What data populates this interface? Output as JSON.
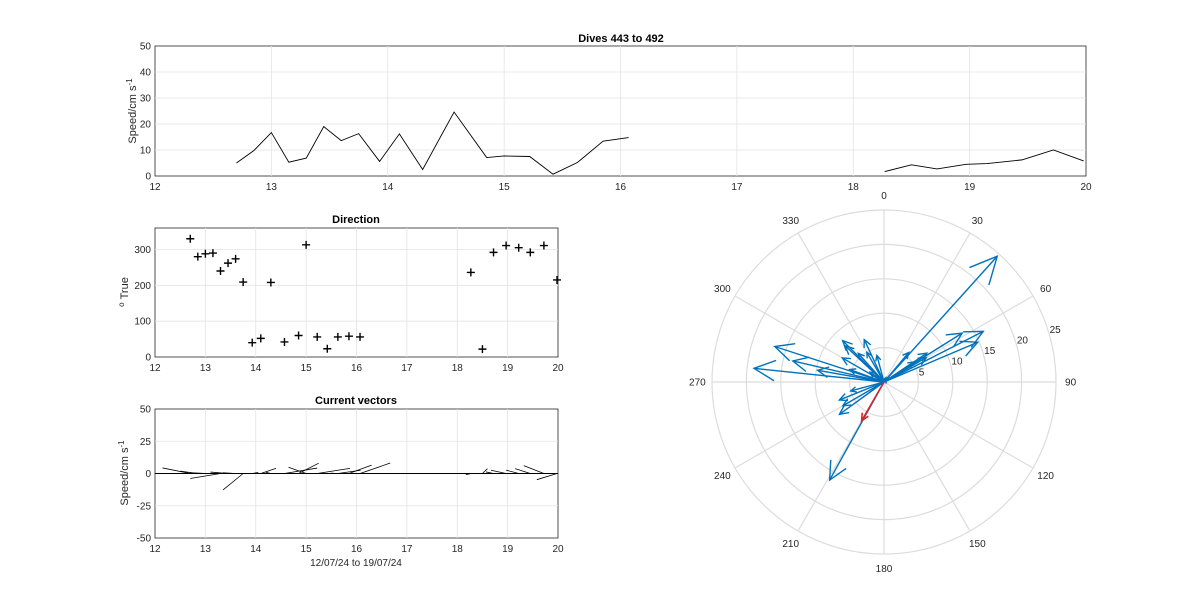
{
  "chart_data": [
    {
      "id": "speed",
      "type": "line",
      "title": "Dives 443 to 492",
      "ylabel_main": "Speed/cm s",
      "ylabel_sup": "-1",
      "xlim": [
        12,
        20
      ],
      "ylim": [
        0,
        50
      ],
      "xticks": [
        12,
        13,
        14,
        15,
        16,
        17,
        18,
        19,
        20
      ],
      "yticks": [
        0,
        10,
        20,
        30,
        40,
        50
      ],
      "grid": true,
      "line_color": "#000000",
      "segments": [
        {
          "x": [
            12.7,
            12.85,
            13.0,
            13.15,
            13.3,
            13.45,
            13.6,
            13.75,
            13.93,
            14.1,
            14.3,
            14.57,
            14.85,
            15.0,
            15.22,
            15.42,
            15.63,
            15.85,
            16.07
          ],
          "y": [
            5.0,
            9.8,
            16.7,
            5.3,
            6.9,
            19.0,
            13.6,
            16.3,
            5.6,
            16.2,
            2.5,
            24.6,
            7.1,
            7.7,
            7.5,
            0.7,
            5.2,
            13.4,
            14.8
          ]
        },
        {
          "x": [
            18.27,
            18.5,
            18.72,
            18.97,
            19.15,
            19.45,
            19.72,
            19.98
          ],
          "y": [
            1.7,
            4.3,
            2.7,
            4.5,
            4.8,
            6.2,
            10.0,
            5.8
          ]
        }
      ]
    },
    {
      "id": "direction",
      "type": "scatter",
      "title": "Direction",
      "ylabel_main": "True",
      "ylabel_sup": "o",
      "xlim": [
        12,
        20
      ],
      "ylim": [
        0,
        360
      ],
      "xticks": [
        12,
        13,
        14,
        15,
        16,
        17,
        18,
        19,
        20
      ],
      "yticks": [
        0,
        100,
        200,
        300
      ],
      "grid": true,
      "marker": "+",
      "x": [
        12.7,
        12.85,
        13.0,
        13.15,
        13.3,
        13.45,
        13.6,
        13.75,
        13.93,
        14.1,
        14.3,
        14.57,
        14.85,
        15.0,
        15.22,
        15.42,
        15.63,
        15.85,
        16.07,
        18.27,
        18.5,
        18.72,
        18.97,
        19.22,
        19.45,
        19.72,
        19.98
      ],
      "y": [
        330,
        280,
        288,
        290,
        240,
        262,
        274,
        209,
        40,
        52,
        208,
        42,
        60,
        313,
        56,
        23,
        56,
        58,
        56,
        236,
        22,
        292,
        311,
        305,
        292,
        311,
        215
      ]
    },
    {
      "id": "current-vectors",
      "type": "line",
      "title": "Current vectors",
      "ylabel_main": "Speed/cm s",
      "ylabel_sup": "-1",
      "xlabel": "12/07/24 to 19/07/24",
      "xlim": [
        12,
        20
      ],
      "ylim": [
        -50,
        50
      ],
      "xticks": [
        12,
        13,
        14,
        15,
        16,
        17,
        18,
        19,
        20
      ],
      "yticks": [
        -50,
        -25,
        0,
        25,
        50
      ],
      "grid": true,
      "stick_color": "#000000",
      "baseline": 0,
      "vectors": [
        {
          "x": 12.7,
          "dx": -0.55,
          "dy": 4.3
        },
        {
          "x": 12.85,
          "dx": -0.35,
          "dy": 1.8
        },
        {
          "x": 13.0,
          "dx": -0.3,
          "dy": 0.6
        },
        {
          "x": 13.15,
          "dx": -0.42,
          "dy": 0.3
        },
        {
          "x": 13.3,
          "dx": -0.6,
          "dy": -3.9
        },
        {
          "x": 13.45,
          "dx": -0.35,
          "dy": 1.1
        },
        {
          "x": 13.6,
          "dx": -0.25,
          "dy": 0.6
        },
        {
          "x": 13.75,
          "dx": -0.4,
          "dy": -12.7
        },
        {
          "x": 13.93,
          "dx": 0.12,
          "dy": 0.8
        },
        {
          "x": 14.1,
          "dx": 0.3,
          "dy": 4.0
        },
        {
          "x": 14.3,
          "dx": -0.1,
          "dy": 1.0
        },
        {
          "x": 14.57,
          "dx": 0.65,
          "dy": 4.2
        },
        {
          "x": 14.85,
          "dx": 0.4,
          "dy": 8.0
        },
        {
          "x": 15.0,
          "dx": -0.35,
          "dy": 4.8
        },
        {
          "x": 15.22,
          "dx": 0.65,
          "dy": 4.0
        },
        {
          "x": 15.42,
          "dx": 0.12,
          "dy": 0.3
        },
        {
          "x": 15.63,
          "dx": 0.45,
          "dy": 2.5
        },
        {
          "x": 15.85,
          "dx": 0.45,
          "dy": 6.5
        },
        {
          "x": 16.07,
          "dx": 0.6,
          "dy": 8.1
        },
        {
          "x": 18.27,
          "dx": -0.1,
          "dy": -1.0
        },
        {
          "x": 18.5,
          "dx": 0.1,
          "dy": 3.7
        },
        {
          "x": 18.72,
          "dx": -0.15,
          "dy": 1.2
        },
        {
          "x": 18.97,
          "dx": -0.3,
          "dy": 2.5
        },
        {
          "x": 19.22,
          "dx": -0.25,
          "dy": 2.6
        },
        {
          "x": 19.45,
          "dx": -0.3,
          "dy": 3.8
        },
        {
          "x": 19.72,
          "dx": -0.4,
          "dy": 6.1
        },
        {
          "x": 19.98,
          "dx": -0.4,
          "dy": -4.8
        }
      ]
    },
    {
      "id": "polar-rose",
      "type": "scatter",
      "title": "",
      "rlim": [
        0,
        25
      ],
      "rticks": [
        5,
        10,
        15,
        20,
        25
      ],
      "theta_ticks": [
        0,
        30,
        60,
        90,
        120,
        150,
        180,
        210,
        240,
        270,
        300,
        330
      ],
      "theta_zero": "top",
      "theta_direction": "clockwise",
      "vector_color": "#0072BD",
      "mean_color": "#D95319",
      "mean_vector": {
        "dir": 210,
        "speed": 6.5
      },
      "vectors": [
        {
          "dir": 330,
          "speed": 5.0
        },
        {
          "dir": 280,
          "speed": 9.8
        },
        {
          "dir": 288,
          "speed": 16.7
        },
        {
          "dir": 290,
          "speed": 5.3
        },
        {
          "dir": 240,
          "speed": 6.9
        },
        {
          "dir": 276,
          "speed": 19.0
        },
        {
          "dir": 283,
          "speed": 13.6
        },
        {
          "dir": 209,
          "speed": 16.3
        },
        {
          "dir": 40,
          "speed": 5.6
        },
        {
          "dir": 63,
          "speed": 16.2
        },
        {
          "dir": 305,
          "speed": 2.5
        },
        {
          "dir": 42,
          "speed": 24.6
        },
        {
          "dir": 60,
          "speed": 7.1
        },
        {
          "dir": 313,
          "speed": 7.7
        },
        {
          "dir": 56,
          "speed": 7.5
        },
        {
          "dir": 23,
          "speed": 0.7
        },
        {
          "dir": 56,
          "speed": 5.2
        },
        {
          "dir": 58,
          "speed": 13.4
        },
        {
          "dir": 67,
          "speed": 14.8
        },
        {
          "dir": 315,
          "speed": 8.5
        },
        {
          "dir": 335,
          "speed": 6.8
        },
        {
          "dir": 318,
          "speed": 5.6
        },
        {
          "dir": 345,
          "speed": 4.0
        },
        {
          "dir": 300,
          "speed": 7.0
        },
        {
          "dir": 255,
          "speed": 5.0
        },
        {
          "dir": 248,
          "speed": 7.0
        },
        {
          "dir": 234,
          "speed": 8.0
        }
      ]
    }
  ]
}
